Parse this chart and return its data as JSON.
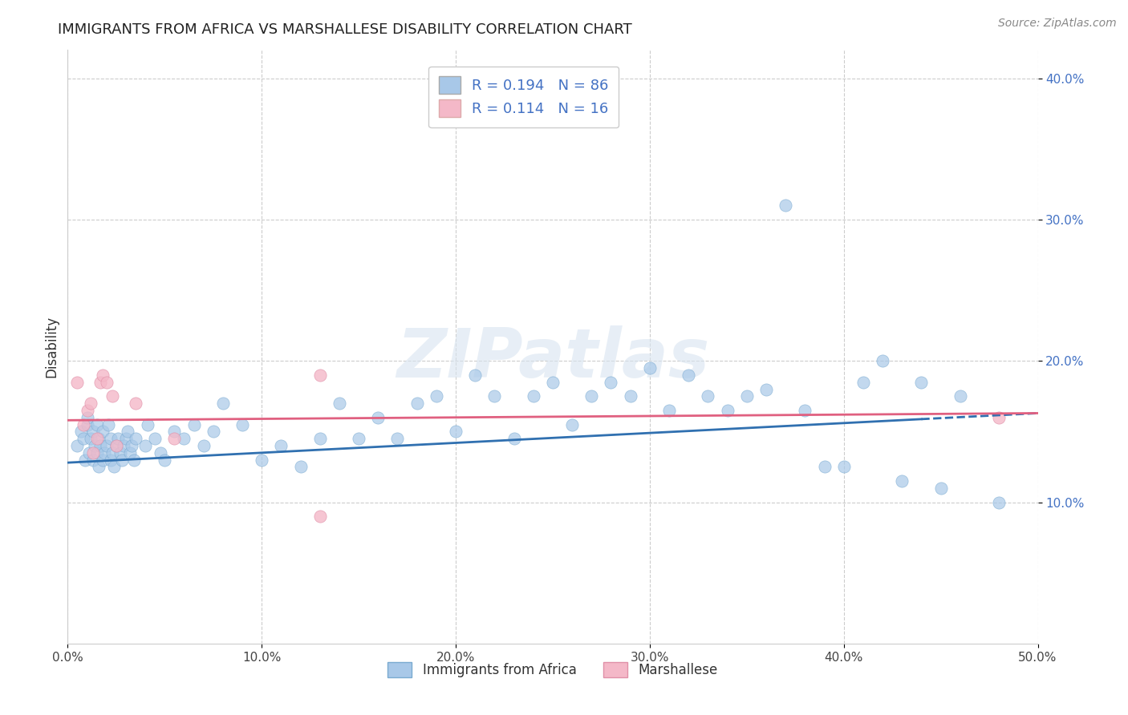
{
  "title": "IMMIGRANTS FROM AFRICA VS MARSHALLESE DISABILITY CORRELATION CHART",
  "source": "Source: ZipAtlas.com",
  "ylabel": "Disability",
  "xlim": [
    0.0,
    0.5
  ],
  "ylim": [
    0.0,
    0.42
  ],
  "xticks": [
    0.0,
    0.1,
    0.2,
    0.3,
    0.4,
    0.5
  ],
  "yticks": [
    0.1,
    0.2,
    0.3,
    0.4
  ],
  "xtick_labels": [
    "0.0%",
    "10.0%",
    "20.0%",
    "30.0%",
    "40.0%",
    "50.0%"
  ],
  "ytick_labels": [
    "10.0%",
    "20.0%",
    "30.0%",
    "40.0%"
  ],
  "legend1_label": "Immigrants from Africa",
  "legend2_label": "Marshallese",
  "r1": 0.194,
  "n1": 86,
  "r2": 0.114,
  "n2": 16,
  "color_blue": "#a8c8e8",
  "color_pink": "#f4b8c8",
  "color_line_blue": "#3070b0",
  "color_line_pink": "#e06080",
  "watermark": "ZIPatlas",
  "blue_x": [
    0.005,
    0.007,
    0.008,
    0.009,
    0.01,
    0.01,
    0.011,
    0.012,
    0.013,
    0.013,
    0.014,
    0.015,
    0.015,
    0.016,
    0.016,
    0.017,
    0.018,
    0.018,
    0.019,
    0.02,
    0.021,
    0.022,
    0.022,
    0.023,
    0.024,
    0.025,
    0.026,
    0.027,
    0.028,
    0.029,
    0.03,
    0.031,
    0.032,
    0.033,
    0.034,
    0.035,
    0.04,
    0.041,
    0.045,
    0.048,
    0.05,
    0.055,
    0.06,
    0.065,
    0.07,
    0.075,
    0.08,
    0.09,
    0.1,
    0.11,
    0.12,
    0.13,
    0.14,
    0.15,
    0.16,
    0.17,
    0.18,
    0.19,
    0.2,
    0.21,
    0.22,
    0.23,
    0.24,
    0.25,
    0.26,
    0.27,
    0.28,
    0.29,
    0.3,
    0.31,
    0.32,
    0.33,
    0.34,
    0.35,
    0.36,
    0.37,
    0.38,
    0.39,
    0.4,
    0.41,
    0.42,
    0.43,
    0.44,
    0.45,
    0.46,
    0.48
  ],
  "blue_y": [
    0.14,
    0.15,
    0.145,
    0.13,
    0.155,
    0.16,
    0.135,
    0.145,
    0.15,
    0.13,
    0.14,
    0.135,
    0.155,
    0.145,
    0.125,
    0.14,
    0.13,
    0.15,
    0.135,
    0.14,
    0.155,
    0.13,
    0.145,
    0.135,
    0.125,
    0.14,
    0.145,
    0.135,
    0.13,
    0.14,
    0.145,
    0.15,
    0.135,
    0.14,
    0.13,
    0.145,
    0.14,
    0.155,
    0.145,
    0.135,
    0.13,
    0.15,
    0.145,
    0.155,
    0.14,
    0.15,
    0.17,
    0.155,
    0.13,
    0.14,
    0.125,
    0.145,
    0.17,
    0.145,
    0.16,
    0.145,
    0.17,
    0.175,
    0.15,
    0.19,
    0.175,
    0.145,
    0.175,
    0.185,
    0.155,
    0.175,
    0.185,
    0.175,
    0.195,
    0.165,
    0.19,
    0.175,
    0.165,
    0.175,
    0.18,
    0.31,
    0.165,
    0.125,
    0.125,
    0.185,
    0.2,
    0.115,
    0.185,
    0.11,
    0.175,
    0.1
  ],
  "pink_x": [
    0.005,
    0.008,
    0.01,
    0.012,
    0.013,
    0.015,
    0.017,
    0.018,
    0.02,
    0.023,
    0.025,
    0.035,
    0.055,
    0.13,
    0.13,
    0.48
  ],
  "pink_y": [
    0.185,
    0.155,
    0.165,
    0.17,
    0.135,
    0.145,
    0.185,
    0.19,
    0.185,
    0.175,
    0.14,
    0.17,
    0.145,
    0.09,
    0.19,
    0.16
  ],
  "blue_line_x0": 0.0,
  "blue_line_x1": 0.5,
  "blue_line_y0": 0.128,
  "blue_line_y1": 0.163,
  "pink_line_x0": 0.0,
  "pink_line_x1": 0.5,
  "pink_line_y0": 0.158,
  "pink_line_y1": 0.163
}
